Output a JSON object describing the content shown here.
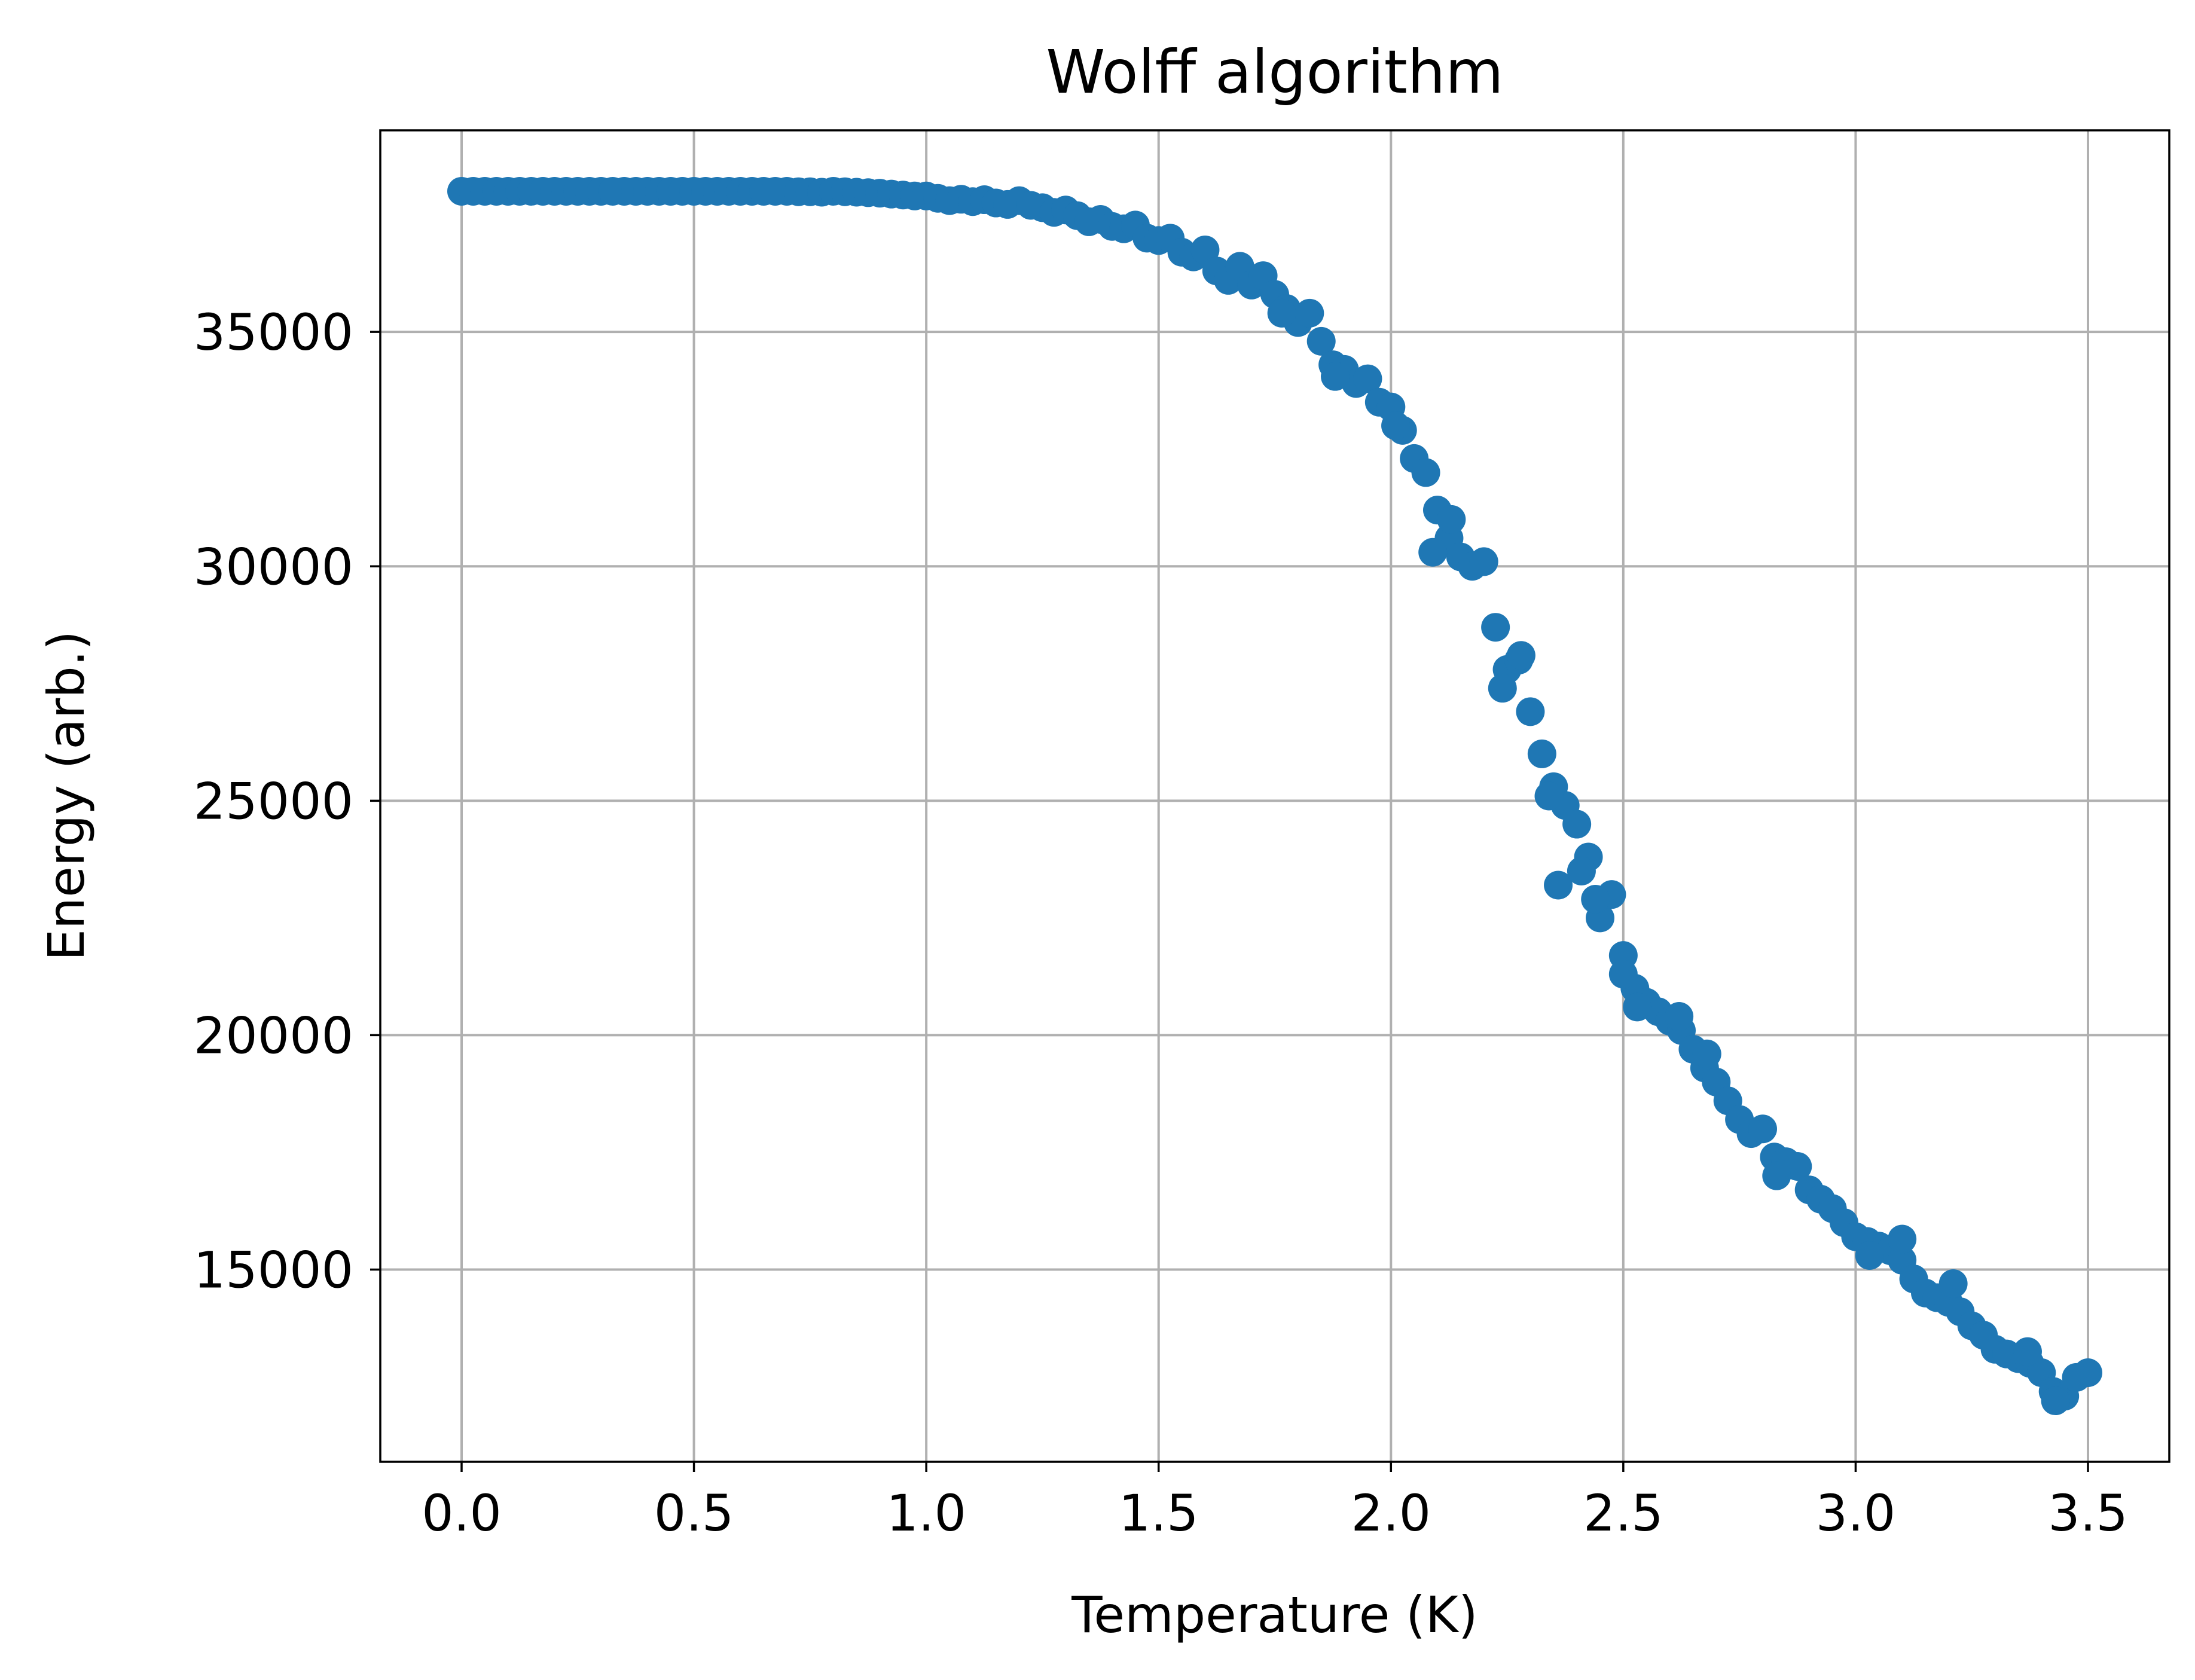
{
  "chart_data": {
    "type": "scatter",
    "title": "Wolff algorithm",
    "xlabel": "Temperature (K)",
    "ylabel": "Energy (arb.)",
    "xlim": [
      -0.175,
      3.675
    ],
    "ylim": [
      10900,
      39300
    ],
    "xticks": [
      0.0,
      0.5,
      1.0,
      1.5,
      2.0,
      2.5,
      3.0,
      3.5
    ],
    "xtick_labels": [
      "0.0",
      "0.5",
      "1.0",
      "1.5",
      "2.0",
      "2.5",
      "3.0",
      "3.5"
    ],
    "yticks": [
      15000,
      20000,
      25000,
      30000,
      35000
    ],
    "ytick_labels": [
      "15000",
      "20000",
      "25000",
      "30000",
      "35000"
    ],
    "grid": true,
    "marker_color": "#1f77b4",
    "series": [
      {
        "points": [
          [
            0.0,
            38000
          ],
          [
            0.025,
            38000
          ],
          [
            0.05,
            38000
          ],
          [
            0.075,
            38000
          ],
          [
            0.1,
            38000
          ],
          [
            0.125,
            38000
          ],
          [
            0.15,
            38000
          ],
          [
            0.175,
            38000
          ],
          [
            0.2,
            38000
          ],
          [
            0.225,
            38000
          ],
          [
            0.25,
            38000
          ],
          [
            0.275,
            38000
          ],
          [
            0.3,
            38000
          ],
          [
            0.325,
            38000
          ],
          [
            0.35,
            38000
          ],
          [
            0.375,
            38000
          ],
          [
            0.4,
            38000
          ],
          [
            0.425,
            38000
          ],
          [
            0.45,
            38000
          ],
          [
            0.475,
            38000
          ],
          [
            0.5,
            38000
          ],
          [
            0.525,
            38000
          ],
          [
            0.55,
            38000
          ],
          [
            0.575,
            38000
          ],
          [
            0.6,
            38000
          ],
          [
            0.625,
            38000
          ],
          [
            0.65,
            38000
          ],
          [
            0.675,
            38000
          ],
          [
            0.7,
            38000
          ],
          [
            0.725,
            37990
          ],
          [
            0.75,
            37990
          ],
          [
            0.775,
            37980
          ],
          [
            0.8,
            38000
          ],
          [
            0.825,
            37990
          ],
          [
            0.85,
            37980
          ],
          [
            0.875,
            37970
          ],
          [
            0.9,
            37960
          ],
          [
            0.925,
            37940
          ],
          [
            0.95,
            37920
          ],
          [
            0.975,
            37900
          ],
          [
            1.0,
            37900
          ],
          [
            1.025,
            37850
          ],
          [
            1.05,
            37800
          ],
          [
            1.075,
            37830
          ],
          [
            1.1,
            37780
          ],
          [
            1.125,
            37820
          ],
          [
            1.15,
            37750
          ],
          [
            1.175,
            37720
          ],
          [
            1.2,
            37800
          ],
          [
            1.225,
            37700
          ],
          [
            1.25,
            37650
          ],
          [
            1.275,
            37550
          ],
          [
            1.3,
            37600
          ],
          [
            1.325,
            37480
          ],
          [
            1.35,
            37350
          ],
          [
            1.375,
            37400
          ],
          [
            1.4,
            37250
          ],
          [
            1.425,
            37200
          ],
          [
            1.45,
            37280
          ],
          [
            1.475,
            37000
          ],
          [
            1.5,
            36950
          ],
          [
            1.525,
            37000
          ],
          [
            1.55,
            36700
          ],
          [
            1.575,
            36600
          ],
          [
            1.6,
            36750
          ],
          [
            1.625,
            36300
          ],
          [
            1.65,
            36100
          ],
          [
            1.675,
            36400
          ],
          [
            1.7,
            36000
          ],
          [
            1.725,
            36200
          ],
          [
            1.75,
            35800
          ],
          [
            1.775,
            35500
          ],
          [
            1.8,
            35200
          ],
          [
            1.825,
            35400
          ],
          [
            1.85,
            34800
          ],
          [
            1.875,
            34300
          ],
          [
            1.9,
            34200
          ],
          [
            1.925,
            33900
          ],
          [
            1.95,
            34000
          ],
          [
            1.975,
            33500
          ],
          [
            2.0,
            33400
          ],
          [
            2.025,
            32900
          ],
          [
            2.05,
            32300
          ],
          [
            2.075,
            32000
          ],
          [
            2.1,
            31200
          ],
          [
            2.125,
            30600
          ],
          [
            2.15,
            30200
          ],
          [
            2.175,
            30000
          ],
          [
            2.2,
            30100
          ],
          [
            2.225,
            28700
          ],
          [
            2.25,
            27800
          ],
          [
            2.275,
            28000
          ],
          [
            2.3,
            26900
          ],
          [
            2.325,
            26000
          ],
          [
            2.35,
            25300
          ],
          [
            2.375,
            24900
          ],
          [
            2.4,
            24500
          ],
          [
            2.425,
            23800
          ],
          [
            2.45,
            22500
          ],
          [
            2.475,
            23000
          ],
          [
            2.5,
            21700
          ],
          [
            2.525,
            21000
          ],
          [
            2.55,
            20700
          ],
          [
            2.575,
            20500
          ],
          [
            2.6,
            20300
          ],
          [
            2.625,
            20100
          ],
          [
            2.65,
            19700
          ],
          [
            2.675,
            19300
          ],
          [
            2.7,
            19000
          ],
          [
            2.725,
            18600
          ],
          [
            2.75,
            18200
          ],
          [
            2.775,
            17900
          ],
          [
            2.8,
            18000
          ],
          [
            2.825,
            17400
          ],
          [
            2.85,
            17300
          ],
          [
            2.875,
            17200
          ],
          [
            2.9,
            16700
          ],
          [
            2.925,
            16500
          ],
          [
            2.95,
            16300
          ],
          [
            2.975,
            16000
          ],
          [
            3.0,
            15700
          ],
          [
            3.025,
            15600
          ],
          [
            3.05,
            15500
          ],
          [
            3.075,
            15400
          ],
          [
            3.1,
            15200
          ],
          [
            3.125,
            14800
          ],
          [
            3.15,
            14500
          ],
          [
            3.175,
            14400
          ],
          [
            3.2,
            14300
          ],
          [
            3.225,
            14100
          ],
          [
            3.25,
            13800
          ],
          [
            3.275,
            13600
          ],
          [
            3.3,
            13300
          ],
          [
            3.325,
            13200
          ],
          [
            3.35,
            13100
          ],
          [
            3.375,
            13000
          ],
          [
            3.4,
            12800
          ],
          [
            3.425,
            12400
          ],
          [
            3.45,
            12300
          ],
          [
            3.475,
            12700
          ],
          [
            3.5,
            12800
          ],
          [
            1.765,
            35400
          ],
          [
            1.88,
            34050
          ],
          [
            2.01,
            33000
          ],
          [
            2.09,
            30300
          ],
          [
            2.13,
            31000
          ],
          [
            2.24,
            27400
          ],
          [
            2.28,
            28100
          ],
          [
            2.34,
            25100
          ],
          [
            2.36,
            23200
          ],
          [
            2.41,
            23500
          ],
          [
            2.44,
            22900
          ],
          [
            2.5,
            21300
          ],
          [
            2.53,
            20600
          ],
          [
            2.62,
            20400
          ],
          [
            2.68,
            19600
          ],
          [
            2.83,
            17000
          ],
          [
            3.03,
            15300
          ],
          [
            3.1,
            15650
          ],
          [
            3.21,
            14700
          ],
          [
            3.37,
            13250
          ],
          [
            3.43,
            12200
          ]
        ]
      }
    ]
  }
}
